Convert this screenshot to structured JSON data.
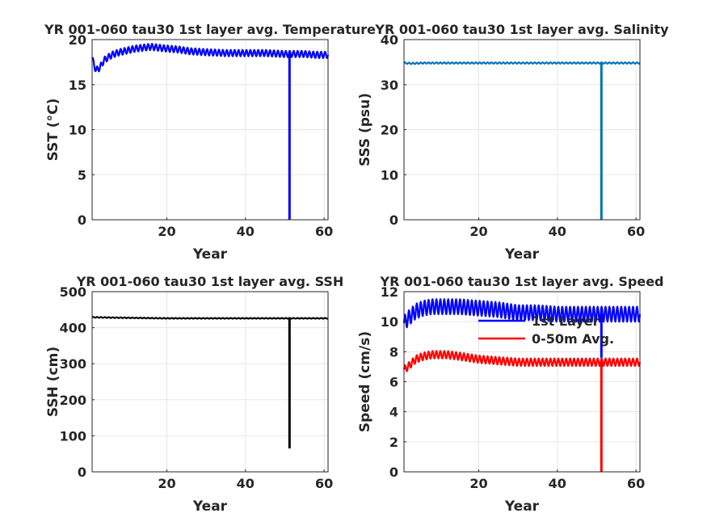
{
  "chart_data": [
    {
      "type": "line",
      "title": "YR 001-060 tau30 1st layer avg. Temperature",
      "xlabel": "Year",
      "ylabel": "SST (°C)",
      "xlim": [
        1,
        61
      ],
      "ylim": [
        0,
        20
      ],
      "xticks": [
        20,
        40,
        60
      ],
      "yticks": [
        0,
        5,
        10,
        15,
        20
      ],
      "grid": true,
      "series": [
        {
          "color": "#0000ff",
          "x": [
            1.0,
            1.5,
            2.0,
            3.0,
            4.0,
            6.0,
            8.0,
            10.0,
            12.0,
            14.0,
            16.0,
            18.0,
            20.0,
            23.0,
            26.0,
            30.0,
            35.0,
            40.0,
            45.0,
            50.0,
            51.0,
            51.2,
            51.4,
            52.0,
            55.0,
            58.0,
            61.0
          ],
          "values": [
            17.9,
            17.2,
            16.6,
            16.9,
            17.7,
            18.3,
            18.6,
            18.8,
            19.0,
            19.1,
            19.2,
            19.1,
            19.0,
            18.9,
            18.7,
            18.6,
            18.5,
            18.5,
            18.5,
            18.4,
            18.4,
            0.0,
            18.4,
            18.4,
            18.4,
            18.3,
            18.3
          ],
          "seasonal_amplitude": 0.35
        }
      ]
    },
    {
      "type": "line",
      "title": "YR 001-060 tau30 1st layer avg. Salinity",
      "xlabel": "Year",
      "ylabel": "SSS (psu)",
      "xlim": [
        1,
        61
      ],
      "ylim": [
        0,
        40
      ],
      "xticks": [
        20,
        40,
        60
      ],
      "yticks": [
        0,
        10,
        20,
        30,
        40
      ],
      "grid": true,
      "series": [
        {
          "color": "#0072bd",
          "x": [
            1.0,
            3.0,
            6.0,
            20.0,
            40.0,
            51.0,
            51.2,
            51.4,
            61.0
          ],
          "values": [
            34.8,
            34.7,
            34.8,
            34.8,
            34.8,
            34.8,
            0.0,
            34.8,
            34.8
          ],
          "seasonal_amplitude": 0.15
        }
      ]
    },
    {
      "type": "line",
      "title": "YR 001-060 tau30 1st layer avg. SSH",
      "xlabel": "Year",
      "ylabel": "SSH (cm)",
      "xlim": [
        1,
        61
      ],
      "ylim": [
        0,
        500
      ],
      "xticks": [
        20,
        40,
        60
      ],
      "yticks": [
        0,
        100,
        200,
        300,
        400,
        500
      ],
      "grid": true,
      "series": [
        {
          "color": "#000000",
          "x": [
            1.0,
            6.0,
            20.0,
            40.0,
            51.0,
            51.2,
            51.4,
            61.0
          ],
          "values": [
            429,
            428,
            426,
            426,
            426,
            65,
            426,
            426
          ],
          "seasonal_amplitude": 1
        }
      ]
    },
    {
      "type": "line",
      "title": "YR 001-060 tau30 1st layer avg. Speed",
      "xlabel": "Year",
      "ylabel": "Speed (cm/s)",
      "xlim": [
        1,
        61
      ],
      "ylim": [
        0,
        12
      ],
      "xticks": [
        20,
        40,
        60
      ],
      "yticks": [
        0,
        2,
        4,
        6,
        8,
        10,
        12
      ],
      "grid": true,
      "legend_position": "top-right",
      "series": [
        {
          "name": "1st Layer",
          "color": "#0000ff",
          "x": [
            1.0,
            2.0,
            4.0,
            6.0,
            8.0,
            10.0,
            12.0,
            15.0,
            20.0,
            25.0,
            30.0,
            35.0,
            40.0,
            45.0,
            50.0,
            51.0,
            51.2,
            51.4,
            55.0,
            61.0
          ],
          "values": [
            9.9,
            10.2,
            10.7,
            10.9,
            11.0,
            11.0,
            11.0,
            11.0,
            10.9,
            10.8,
            10.6,
            10.6,
            10.5,
            10.5,
            10.5,
            10.5,
            7.6,
            10.5,
            10.5,
            10.5
          ],
          "seasonal_amplitude": 0.5
        },
        {
          "name": "0-50m Avg.",
          "color": "#ff0000",
          "x": [
            1.0,
            2.0,
            4.0,
            6.0,
            8.0,
            10.0,
            12.0,
            15.0,
            20.0,
            25.0,
            30.0,
            35.0,
            40.0,
            45.0,
            50.0,
            51.0,
            51.2,
            51.4,
            55.0,
            61.0
          ],
          "values": [
            6.8,
            7.0,
            7.5,
            7.7,
            7.8,
            7.8,
            7.8,
            7.7,
            7.5,
            7.4,
            7.3,
            7.3,
            7.3,
            7.3,
            7.3,
            7.3,
            0.0,
            7.3,
            7.3,
            7.3
          ],
          "seasonal_amplitude": 0.25
        }
      ]
    }
  ]
}
